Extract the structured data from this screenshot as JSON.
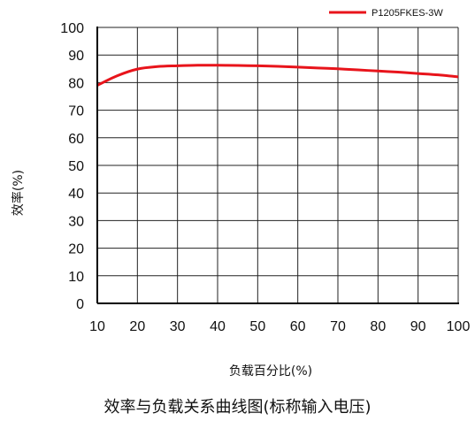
{
  "chart_data": {
    "type": "line",
    "title": "效率与负载关系曲线图(标称输入电压)",
    "xlabel": "负载百分比(%)",
    "ylabel": "效率(%)",
    "xlim": [
      10,
      100
    ],
    "ylim": [
      0,
      100
    ],
    "xticks": [
      10,
      20,
      30,
      40,
      50,
      60,
      70,
      80,
      90,
      100
    ],
    "yticks": [
      0,
      10,
      20,
      30,
      40,
      50,
      60,
      70,
      80,
      90,
      100
    ],
    "grid": true,
    "legend_position": "top-right",
    "series": [
      {
        "name": "P1205FKES-3W",
        "color": "#e8141b",
        "x": [
          10,
          15,
          20,
          25,
          30,
          35,
          40,
          45,
          50,
          55,
          60,
          65,
          70,
          75,
          80,
          85,
          90,
          95,
          100
        ],
        "y": [
          79,
          82.5,
          84.9,
          85.8,
          86.1,
          86.3,
          86.3,
          86.2,
          86.1,
          85.9,
          85.6,
          85.3,
          85,
          84.6,
          84.2,
          83.8,
          83.3,
          82.8,
          82.1
        ]
      }
    ]
  }
}
